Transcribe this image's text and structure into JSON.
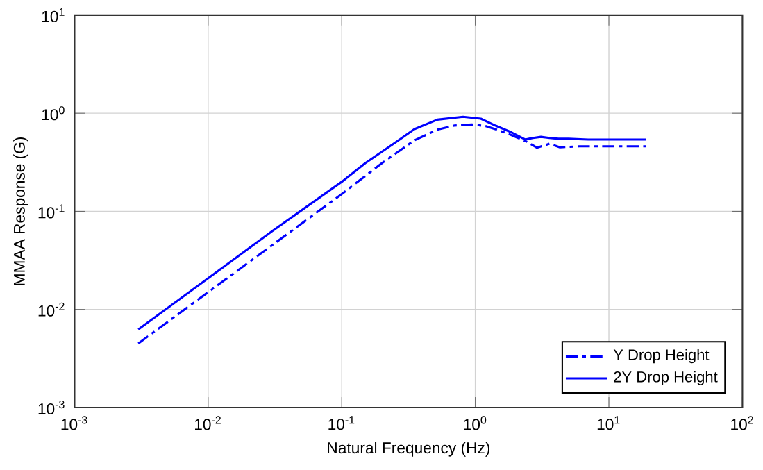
{
  "chart_data": {
    "type": "line",
    "xlabel": "Natural Frequency (Hz)",
    "ylabel": "MMAA Response (G)",
    "log": "xy",
    "grid": true,
    "legend": "bottom right",
    "xlim": [
      0.001,
      100
    ],
    "ylim": [
      0.001,
      10
    ],
    "xticks": [
      {
        "value": 0.001,
        "label": "10$^{-3}$"
      },
      {
        "value": 0.01,
        "label": "10$^{-2}$"
      },
      {
        "value": 0.1,
        "label": "10$^{-1}$"
      },
      {
        "value": 1,
        "label": "10$^{0}$"
      },
      {
        "value": 10,
        "label": "10$^{1}$"
      },
      {
        "value": 100,
        "label": "10$^{2}$"
      }
    ],
    "yticks": [
      {
        "value": 0.001,
        "label": "10$^{-3}$"
      },
      {
        "value": 0.01,
        "label": "10$^{-2}$"
      },
      {
        "value": 0.1,
        "label": "10$^{-1}$"
      },
      {
        "value": 1,
        "label": "10$^{0}$"
      },
      {
        "value": 10,
        "label": "10$^{1}$"
      }
    ],
    "series": [
      {
        "name": "Y Drop Height",
        "color": "#0000ff",
        "line_style": "dashed",
        "x": [
          0.003,
          0.01,
          0.03,
          0.1,
          0.2,
          0.35,
          0.52,
          0.7,
          0.94,
          1.2,
          1.41,
          1.86,
          2.45,
          2.9,
          3.6,
          4.3,
          6,
          10,
          19
        ],
        "values": [
          0.0045,
          0.015,
          0.045,
          0.15,
          0.31,
          0.53,
          0.68,
          0.75,
          0.77,
          0.74,
          0.69,
          0.6,
          0.51,
          0.445,
          0.49,
          0.45,
          0.46,
          0.46,
          0.46
        ]
      },
      {
        "name": "2Y Drop Height",
        "color": "#0000ff",
        "line_style": "solid",
        "x": [
          0.003,
          0.01,
          0.03,
          0.1,
          0.15,
          0.25,
          0.35,
          0.52,
          0.81,
          1.1,
          1.41,
          1.86,
          2.36,
          2.7,
          3.1,
          3.6,
          4.2,
          5,
          7,
          10,
          19
        ],
        "values": [
          0.00625,
          0.0208,
          0.0625,
          0.2,
          0.31,
          0.5,
          0.69,
          0.86,
          0.92,
          0.88,
          0.75,
          0.64,
          0.54,
          0.56,
          0.575,
          0.56,
          0.55,
          0.55,
          0.54,
          0.54,
          0.54
        ]
      }
    ]
  }
}
